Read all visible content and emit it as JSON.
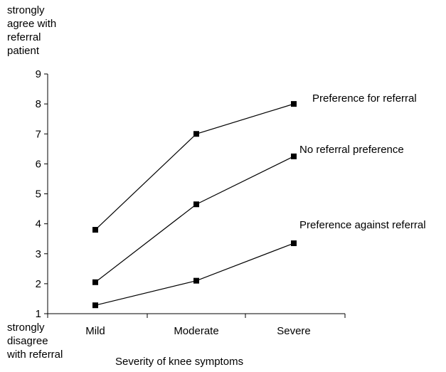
{
  "chart_data": {
    "type": "line",
    "xlabel": "Severity of knee symptoms",
    "y_top_label": "strongly\nagree with\nreferral\npatient",
    "y_bottom_label": "strongly\ndisagree\nwith referral",
    "categories": [
      "Mild",
      "Moderate",
      "Severe"
    ],
    "ylim": [
      1,
      9
    ],
    "yticks": [
      "1",
      "2",
      "3",
      "4",
      "5",
      "6",
      "7",
      "8",
      "9"
    ],
    "grid": false,
    "marker": "square",
    "series": [
      {
        "name": "Preference for referral",
        "values": [
          3.8,
          7.0,
          8.0
        ]
      },
      {
        "name": "No referral preference",
        "values": [
          2.05,
          4.65,
          6.25
        ]
      },
      {
        "name": "Preference against referral",
        "values": [
          1.28,
          2.1,
          3.35
        ]
      }
    ]
  }
}
